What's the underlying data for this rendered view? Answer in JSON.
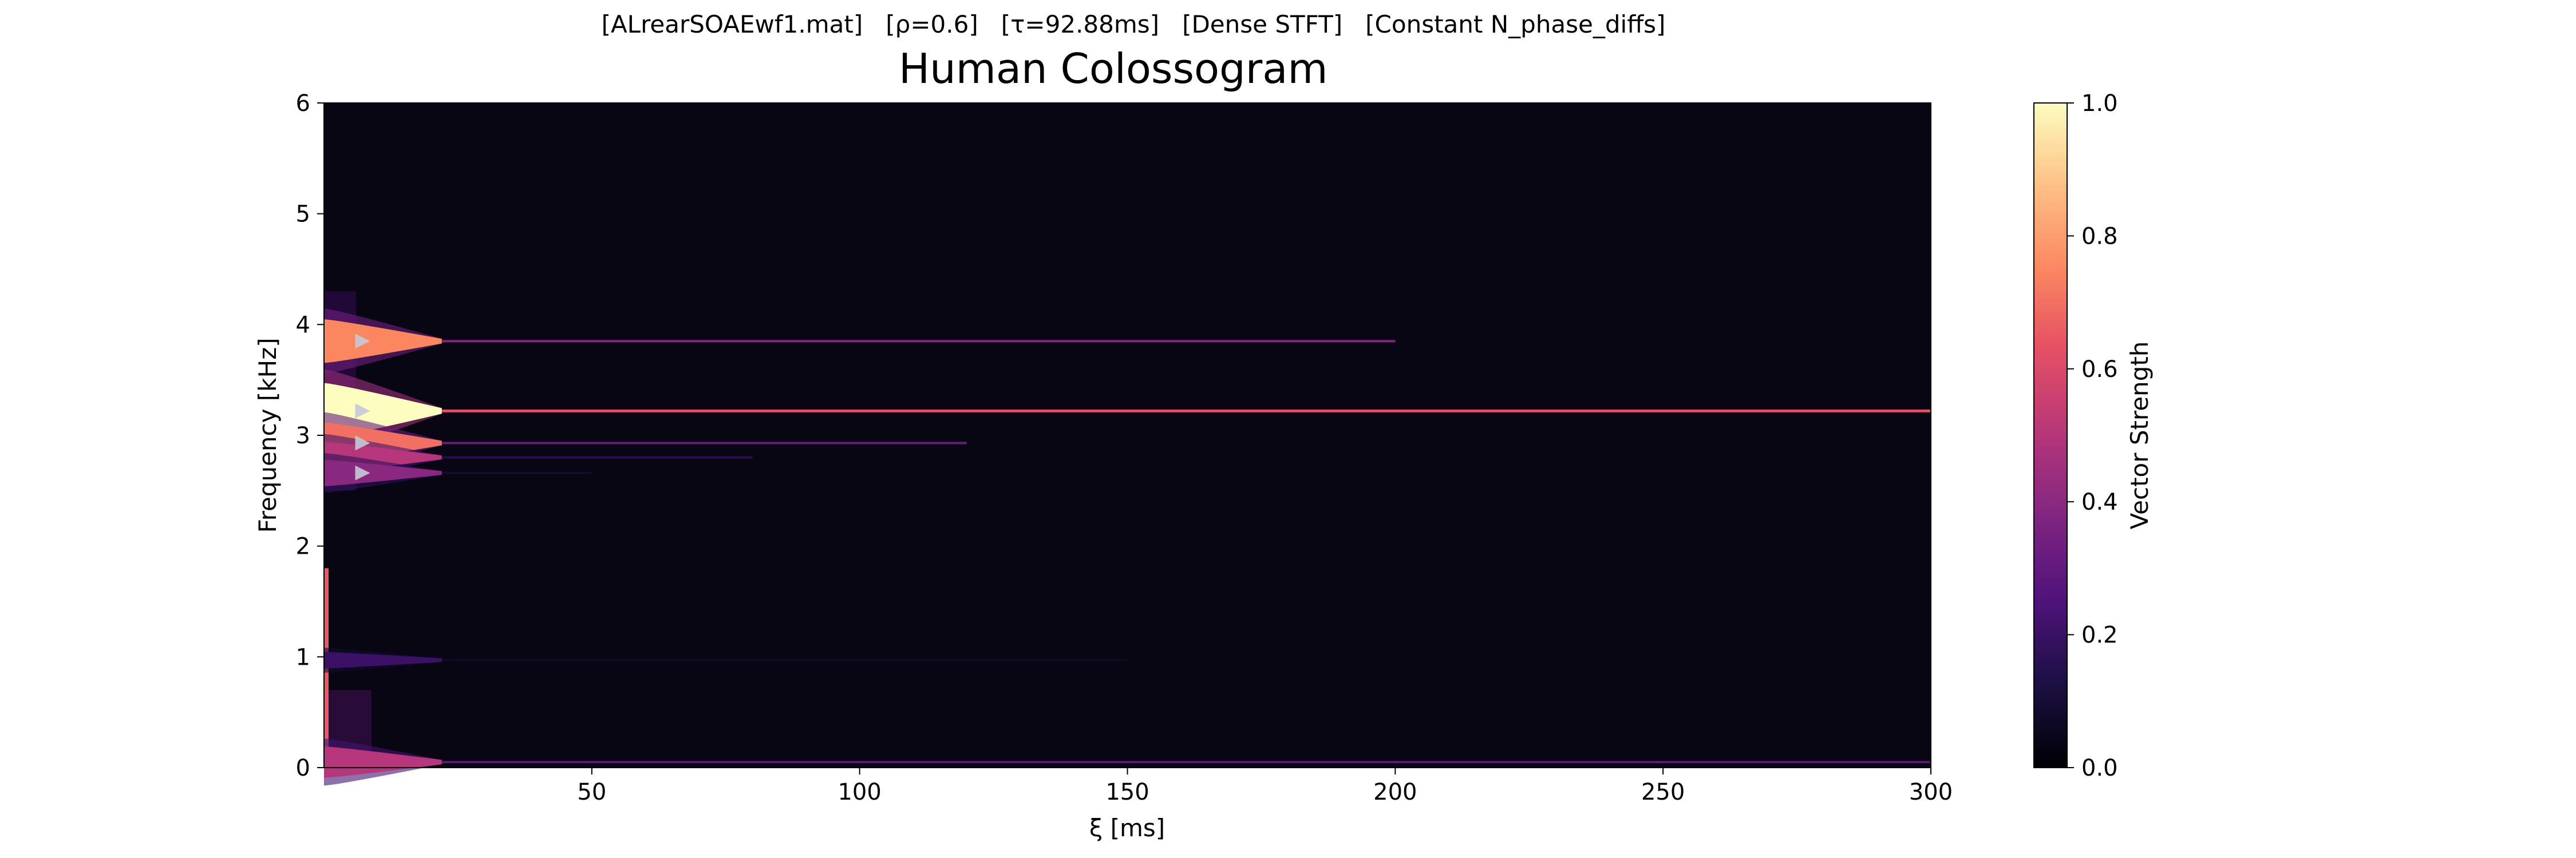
{
  "header": {
    "suptitle": "[ALrearSOAEwf1.mat]   [ρ=0.6]   [τ=92.88ms]   [Dense STFT]   [Constant N_phase_diffs]"
  },
  "chart_data": {
    "type": "heatmap",
    "title": "Human Colossogram",
    "xlabel": "ξ [ms]",
    "ylabel": "Frequency [kHz]",
    "xlim": [
      0,
      300
    ],
    "ylim": [
      0,
      6
    ],
    "xticks": [
      50,
      100,
      150,
      200,
      250,
      300
    ],
    "yticks": [
      0,
      1,
      2,
      3,
      4,
      5,
      6
    ],
    "colormap": "magma",
    "colorbar": {
      "label": "Vector Strength",
      "range": [
        0.0,
        1.0
      ],
      "ticks": [
        "0.0",
        "0.2",
        "0.4",
        "0.6",
        "0.8",
        "1.0"
      ]
    },
    "peaks": [
      {
        "freq_khz": 3.22,
        "peak_strength": 1.0,
        "sustained_strength": 0.62,
        "sustained_until_ms": 300
      },
      {
        "freq_khz": 3.85,
        "peak_strength": 0.75,
        "sustained_strength": 0.38,
        "sustained_until_ms": 200
      },
      {
        "freq_khz": 2.93,
        "peak_strength": 0.7,
        "sustained_strength": 0.32,
        "sustained_until_ms": 120
      },
      {
        "freq_khz": 2.8,
        "peak_strength": 0.5,
        "sustained_strength": 0.15,
        "sustained_until_ms": 80
      },
      {
        "freq_khz": 2.66,
        "peak_strength": 0.4,
        "sustained_strength": 0.1,
        "sustained_until_ms": 50
      },
      {
        "freq_khz": 0.97,
        "peak_strength": 0.2,
        "sustained_strength": 0.08,
        "sustained_until_ms": 150
      },
      {
        "freq_khz": 0.05,
        "peak_strength": 0.5,
        "sustained_strength": 0.3,
        "sustained_until_ms": 300
      }
    ],
    "markers": {
      "shape": "triangle-right",
      "color": "#c8c8d8",
      "x_ms": 7,
      "freqs_khz": [
        3.85,
        3.22,
        2.93,
        2.66
      ]
    }
  }
}
